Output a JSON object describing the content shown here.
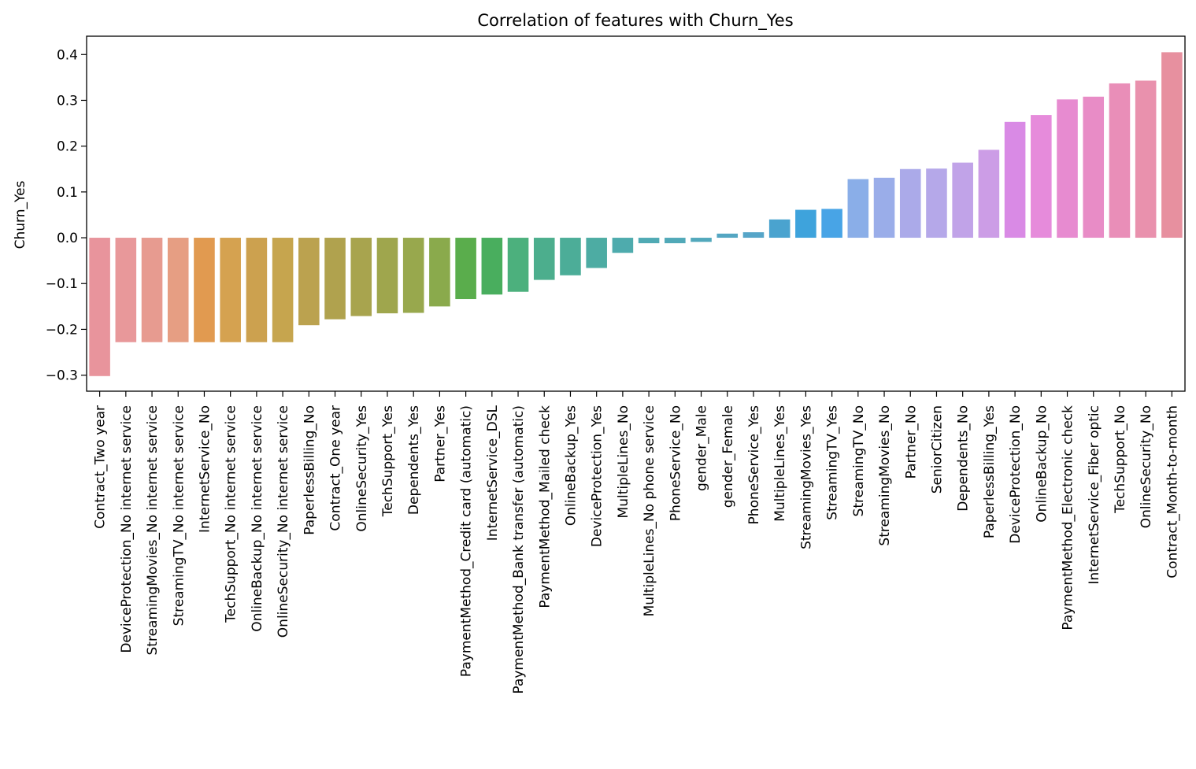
{
  "chart_data": {
    "type": "bar",
    "title": "Correlation of features with Churn_Yes",
    "xlabel": "",
    "ylabel": "Churn_Yes",
    "ylim": [
      -0.335,
      0.44
    ],
    "yticks": [
      -0.3,
      -0.2,
      -0.1,
      0.0,
      0.1,
      0.2,
      0.3,
      0.4
    ],
    "ytick_labels": [
      "−0.3",
      "−0.2",
      "−0.1",
      "0.0",
      "0.1",
      "0.2",
      "0.3",
      "0.4"
    ],
    "grid": false,
    "categories": [
      "Contract_Two year",
      "DeviceProtection_No internet service",
      "StreamingMovies_No internet service",
      "StreamingTV_No internet service",
      "InternetService_No",
      "TechSupport_No internet service",
      "OnlineBackup_No internet service",
      "OnlineSecurity_No internet service",
      "PaperlessBilling_No",
      "Contract_One year",
      "OnlineSecurity_Yes",
      "TechSupport_Yes",
      "Dependents_Yes",
      "Partner_Yes",
      "PaymentMethod_Credit card (automatic)",
      "InternetService_DSL",
      "PaymentMethod_Bank transfer (automatic)",
      "PaymentMethod_Mailed check",
      "OnlineBackup_Yes",
      "DeviceProtection_Yes",
      "MultipleLines_No",
      "MultipleLines_No phone service",
      "PhoneService_No",
      "gender_Male",
      "gender_Female",
      "PhoneService_Yes",
      "MultipleLines_Yes",
      "StreamingMovies_Yes",
      "StreamingTV_Yes",
      "StreamingTV_No",
      "StreamingMovies_No",
      "Partner_No",
      "SeniorCitizen",
      "Dependents_No",
      "PaperlessBilling_Yes",
      "DeviceProtection_No",
      "OnlineBackup_No",
      "PaymentMethod_Electronic check",
      "InternetService_Fiber optic",
      "TechSupport_No",
      "OnlineSecurity_No",
      "Contract_Month-to-month"
    ],
    "values": [
      -0.302,
      -0.228,
      -0.228,
      -0.228,
      -0.228,
      -0.228,
      -0.228,
      -0.228,
      -0.191,
      -0.178,
      -0.171,
      -0.165,
      -0.164,
      -0.15,
      -0.134,
      -0.124,
      -0.118,
      -0.092,
      -0.082,
      -0.066,
      -0.033,
      -0.012,
      -0.012,
      -0.009,
      0.009,
      0.012,
      0.04,
      0.061,
      0.063,
      0.128,
      0.131,
      0.15,
      0.151,
      0.164,
      0.192,
      0.253,
      0.268,
      0.302,
      0.308,
      0.337,
      0.343,
      0.405
    ],
    "colors": [
      "#e8949c",
      "#e8989a",
      "#e79b90",
      "#e69e83",
      "#e19a50",
      "#d5a250",
      "#cca14f",
      "#c6a54e",
      "#bba24f",
      "#b0a24e",
      "#a8a44e",
      "#9fa64d",
      "#98a84d",
      "#8aaa4c",
      "#5aad4c",
      "#49ae5e",
      "#4cb07d",
      "#4cae8d",
      "#4cad98",
      "#4daca3",
      "#4eabad",
      "#50aab4",
      "#51a9b8",
      "#52a8bc",
      "#54a6c2",
      "#56a5c8",
      "#4aa3cf",
      "#3ea3dc",
      "#48a4e6",
      "#8aaee8",
      "#9aade9",
      "#abaae9",
      "#b5a8e9",
      "#c1a3e8",
      "#cc9de6",
      "#d98ae5",
      "#e68bdb",
      "#e78bd0",
      "#e88cc6",
      "#e98eb8",
      "#e991ad",
      "#e7909f"
    ]
  }
}
